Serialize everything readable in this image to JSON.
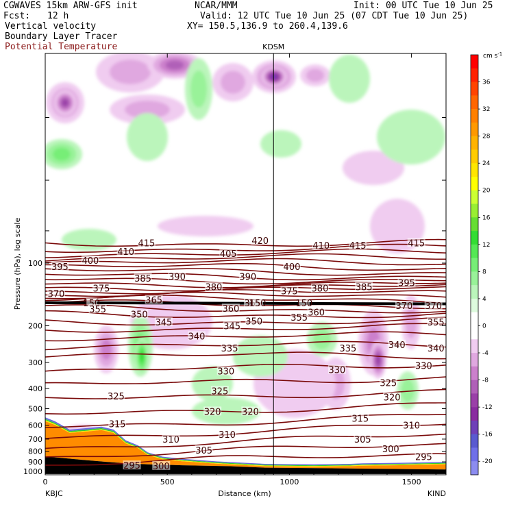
{
  "header": {
    "line1_left": "CGWAVES 15km ARW-GFS init",
    "line1_center": "NCAR/MMM",
    "line1_right": "Init: 00 UTC Tue 10 Jun 25",
    "fcst_label": "Fcst:",
    "fcst_value": "12 h",
    "valid": "Valid: 12 UTC Tue 10 Jun 25 (07 CDT Tue 10 Jun 25)",
    "field1": "Vertical velocity",
    "field2": "Boundary Layer Tracer",
    "field3": "Potential Temperature",
    "xy": "XY= 150.5,136.9 to 260.4,139.6"
  },
  "chart_data": {
    "type": "cross-section",
    "station_marker": "KDSM",
    "station_marker_x_km": 935,
    "xlabel": "Distance (km)",
    "ylabel": "Pressure (hPa), log scale",
    "x_ticks": [
      0,
      500,
      1000,
      1500
    ],
    "xlim": [
      0,
      1650
    ],
    "x_end_labels": {
      "left": "KBJC",
      "right": "KIND"
    },
    "y_ticks": [
      100,
      200,
      300,
      400,
      500,
      600,
      700,
      800,
      900,
      1000
    ],
    "colorbar": {
      "unit": "cm s",
      "unit_exp": "-1",
      "labels": [
        36,
        32,
        28,
        24,
        20,
        16,
        12,
        8,
        4,
        0,
        -4,
        -8,
        -12,
        -16,
        -20
      ],
      "bins": [
        {
          "lo": 38,
          "color": "#ff0000"
        },
        {
          "lo": 36,
          "color": "#ff2200"
        },
        {
          "lo": 34,
          "color": "#ff4400"
        },
        {
          "lo": 32,
          "color": "#ff6600"
        },
        {
          "lo": 30,
          "color": "#ff8000"
        },
        {
          "lo": 28,
          "color": "#ff9900"
        },
        {
          "lo": 26,
          "color": "#ffb300"
        },
        {
          "lo": 24,
          "color": "#ffcc00"
        },
        {
          "lo": 22,
          "color": "#ffe600"
        },
        {
          "lo": 20,
          "color": "#ffff00"
        },
        {
          "lo": 18,
          "color": "#ccff33"
        },
        {
          "lo": 16,
          "color": "#99ee33"
        },
        {
          "lo": 14,
          "color": "#66dd33"
        },
        {
          "lo": 12,
          "color": "#33dd33"
        },
        {
          "lo": 10,
          "color": "#55e855"
        },
        {
          "lo": 8,
          "color": "#77ee77"
        },
        {
          "lo": 6,
          "color": "#99f299"
        },
        {
          "lo": 4,
          "color": "#bbf5bb"
        },
        {
          "lo": 2,
          "color": "#ddfadd"
        },
        {
          "lo": 0,
          "color": "#ffffff"
        },
        {
          "lo": -2,
          "color": "#ffffff"
        },
        {
          "lo": -4,
          "color": "#f0ccf0"
        },
        {
          "lo": -6,
          "color": "#e0a8e0"
        },
        {
          "lo": -8,
          "color": "#cc80cc"
        },
        {
          "lo": -10,
          "color": "#b060b8"
        },
        {
          "lo": -12,
          "color": "#9a40a8"
        },
        {
          "lo": -14,
          "color": "#8a2ca0"
        },
        {
          "lo": -16,
          "color": "#6f40b8"
        },
        {
          "lo": -18,
          "color": "#5a5ad0"
        },
        {
          "lo": -20,
          "color": "#7070e8"
        },
        {
          "lo": -22,
          "color": "#8c8cf0"
        }
      ]
    },
    "theta_labels": [
      {
        "v": "415",
        "x": 415,
        "p": 80
      },
      {
        "v": "420",
        "x": 880,
        "p": 78
      },
      {
        "v": "410",
        "x": 1130,
        "p": 82
      },
      {
        "v": "415",
        "x": 1280,
        "p": 82
      },
      {
        "v": "415",
        "x": 1520,
        "p": 80
      },
      {
        "v": "410",
        "x": 330,
        "p": 88
      },
      {
        "v": "405",
        "x": 750,
        "p": 90
      },
      {
        "v": "400",
        "x": 185,
        "p": 97
      },
      {
        "v": "400",
        "x": 1010,
        "p": 104
      },
      {
        "v": "395",
        "x": 60,
        "p": 104
      },
      {
        "v": "395",
        "x": 1480,
        "p": 124
      },
      {
        "v": "390",
        "x": 540,
        "p": 116
      },
      {
        "v": "390",
        "x": 830,
        "p": 116
      },
      {
        "v": "385",
        "x": 400,
        "p": 118
      },
      {
        "v": "385",
        "x": 1305,
        "p": 130
      },
      {
        "v": "380",
        "x": 690,
        "p": 130
      },
      {
        "v": "380",
        "x": 1125,
        "p": 132
      },
      {
        "v": "375",
        "x": 230,
        "p": 132
      },
      {
        "v": "375",
        "x": 1000,
        "p": 136
      },
      {
        "v": "370",
        "x": 45,
        "p": 140
      },
      {
        "v": "370",
        "x": 1470,
        "p": 160
      },
      {
        "v": "370",
        "x": 1590,
        "p": 160
      },
      {
        "v": "365",
        "x": 445,
        "p": 150
      },
      {
        "v": "365",
        "x": 850,
        "p": 155
      },
      {
        "v": "150",
        "x": 190,
        "p": 155
      },
      {
        "v": "150",
        "x": 870,
        "p": 155
      },
      {
        "v": "150",
        "x": 1060,
        "p": 155
      },
      {
        "v": "360",
        "x": 760,
        "p": 165
      },
      {
        "v": "360",
        "x": 1110,
        "p": 172
      },
      {
        "v": "355",
        "x": 215,
        "p": 166
      },
      {
        "v": "355",
        "x": 1040,
        "p": 182
      },
      {
        "v": "355",
        "x": 1600,
        "p": 192
      },
      {
        "v": "350",
        "x": 385,
        "p": 176
      },
      {
        "v": "350",
        "x": 855,
        "p": 190
      },
      {
        "v": "345",
        "x": 485,
        "p": 192
      },
      {
        "v": "345",
        "x": 765,
        "p": 200
      },
      {
        "v": "340",
        "x": 620,
        "p": 224
      },
      {
        "v": "340",
        "x": 1440,
        "p": 246
      },
      {
        "v": "340",
        "x": 1600,
        "p": 256
      },
      {
        "v": "335",
        "x": 755,
        "p": 256
      },
      {
        "v": "335",
        "x": 1240,
        "p": 256
      },
      {
        "v": "330",
        "x": 740,
        "p": 330
      },
      {
        "v": "330",
        "x": 1195,
        "p": 325
      },
      {
        "v": "330",
        "x": 1550,
        "p": 310
      },
      {
        "v": "325",
        "x": 290,
        "p": 435
      },
      {
        "v": "325",
        "x": 715,
        "p": 410
      },
      {
        "v": "325",
        "x": 1405,
        "p": 375
      },
      {
        "v": "320",
        "x": 685,
        "p": 515
      },
      {
        "v": "320",
        "x": 840,
        "p": 515
      },
      {
        "v": "320",
        "x": 1420,
        "p": 440
      },
      {
        "v": "315",
        "x": 295,
        "p": 590
      },
      {
        "v": "315",
        "x": 1290,
        "p": 555
      },
      {
        "v": "310",
        "x": 1500,
        "p": 600
      },
      {
        "v": "310",
        "x": 745,
        "p": 665
      },
      {
        "v": "310",
        "x": 515,
        "p": 700
      },
      {
        "v": "305",
        "x": 650,
        "p": 790
      },
      {
        "v": "305",
        "x": 1300,
        "p": 700
      },
      {
        "v": "300",
        "x": 475,
        "p": 940
      },
      {
        "v": "300",
        "x": 1415,
        "p": 780
      },
      {
        "v": "295",
        "x": 355,
        "p": 935
      },
      {
        "v": "295",
        "x": 1550,
        "p": 850
      }
    ]
  }
}
